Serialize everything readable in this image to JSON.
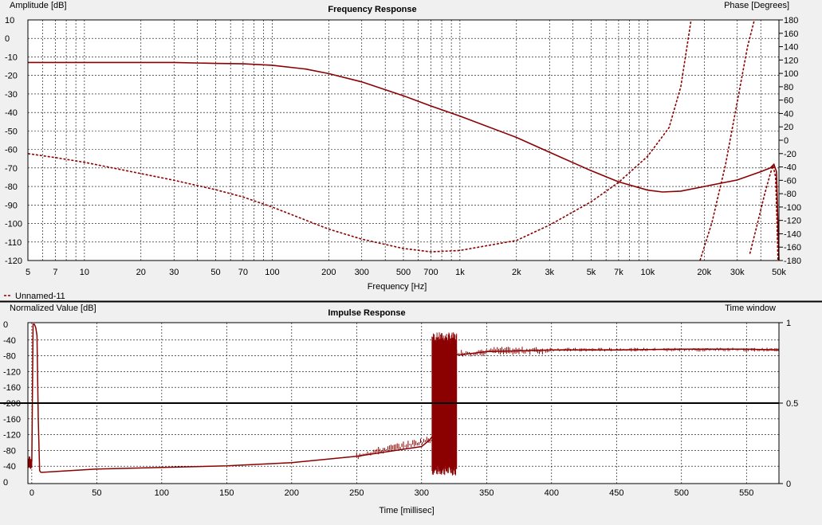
{
  "colors": {
    "trace": "#8b0000",
    "grid": "#000000",
    "background": "#f0f0f0",
    "plot": "#ffffff"
  },
  "legend": {
    "entry": "Unnamed-11"
  },
  "chart_data": [
    {
      "type": "line",
      "title": "Frequency Response",
      "xlabel": "Frequency [Hz]",
      "ylabel_left": "Amplitude [dB]",
      "ylabel_right": "Phase [Degrees]",
      "x_scale": "log",
      "xlim": [
        5,
        50000
      ],
      "ylim_left": [
        -120,
        10
      ],
      "ylim_right": [
        -180,
        180
      ],
      "x_ticks": [
        {
          "v": 5,
          "l": "5"
        },
        {
          "v": 7,
          "l": "7"
        },
        {
          "v": 10,
          "l": "10"
        },
        {
          "v": 20,
          "l": "20"
        },
        {
          "v": 30,
          "l": "30"
        },
        {
          "v": 50,
          "l": "50"
        },
        {
          "v": 70,
          "l": "70"
        },
        {
          "v": 100,
          "l": "100"
        },
        {
          "v": 200,
          "l": "200"
        },
        {
          "v": 300,
          "l": "300"
        },
        {
          "v": 500,
          "l": "500"
        },
        {
          "v": 700,
          "l": "700"
        },
        {
          "v": 1000,
          "l": "1k"
        },
        {
          "v": 2000,
          "l": "2k"
        },
        {
          "v": 3000,
          "l": "3k"
        },
        {
          "v": 5000,
          "l": "5k"
        },
        {
          "v": 7000,
          "l": "7k"
        },
        {
          "v": 10000,
          "l": "10k"
        },
        {
          "v": 20000,
          "l": "20k"
        },
        {
          "v": 30000,
          "l": "30k"
        },
        {
          "v": 50000,
          "l": "50k"
        }
      ],
      "y_ticks_left": [
        "10",
        "0",
        "-10",
        "-20",
        "-30",
        "-40",
        "-50",
        "-60",
        "-70",
        "-80",
        "-90",
        "-100",
        "-110",
        "-120"
      ],
      "y_ticks_right": [
        "180",
        "160",
        "140",
        "120",
        "100",
        "80",
        "60",
        "40",
        "20",
        "0",
        "-20",
        "-40",
        "-60",
        "-80",
        "-100",
        "-120",
        "-140",
        "-160",
        "-180"
      ],
      "grid": true,
      "series": [
        {
          "name": "Unnamed-11",
          "style": "solid",
          "axis": "left",
          "x": [
            5,
            10,
            20,
            30,
            50,
            70,
            100,
            150,
            200,
            300,
            500,
            700,
            1000,
            2000,
            3000,
            5000,
            7000,
            10000,
            12000,
            15000,
            20000,
            30000,
            40000,
            45000,
            47000,
            48500,
            50000
          ],
          "y": [
            -13,
            -13,
            -13,
            -13,
            -13.5,
            -13.7,
            -14.5,
            -16.5,
            -19,
            -23.5,
            -31,
            -36.5,
            -42,
            -53.5,
            -61.5,
            -71.5,
            -77.5,
            -82,
            -83,
            -82.5,
            -80,
            -76.5,
            -72,
            -70,
            -68,
            -72,
            -120
          ]
        },
        {
          "name": "Unnamed-11",
          "style": "dashed",
          "axis": "right",
          "segments": [
            {
              "x": [
                5,
                7,
                10,
                20,
                30,
                50,
                70,
                100,
                200,
                300,
                500,
                700,
                1000,
                2000,
                3000,
                5000,
                7000,
                10000,
                13000,
                15000,
                17000
              ],
              "y": [
                -20,
                -26,
                -33,
                -50,
                -60,
                -74,
                -85,
                -100,
                -133,
                -148,
                -162,
                -167,
                -165,
                -150,
                -127,
                -92,
                -63,
                -24,
                19,
                80,
                179
              ]
            },
            {
              "x": [
                19000,
                22000,
                26000,
                30000,
                34000,
                37000
              ],
              "y": [
                -180,
                -123,
                -36,
                58,
                140,
                180
              ]
            },
            {
              "x": [
                35000,
                38000,
                42000,
                45000,
                46500,
                48000,
                48800,
                49400
              ],
              "y": [
                -170,
                -130,
                -80,
                -50,
                -38,
                -55,
                -120,
                -180
              ]
            }
          ]
        }
      ]
    },
    {
      "type": "line",
      "title": "Impulse Response",
      "xlabel": "Time [millisec]",
      "ylabel_left": "Normalized Value [dB]",
      "ylabel_right": "Time window",
      "xlim": [
        -3,
        575
      ],
      "x_ticks": [
        0,
        50,
        100,
        150,
        200,
        250,
        300,
        350,
        400,
        450,
        500,
        550
      ],
      "ylim_left": [
        0,
        1
      ],
      "ylim_right": [
        0,
        1
      ],
      "y_ticks_left": [
        "0",
        "-40",
        "-80",
        "-120",
        "-160",
        "-200",
        "-160",
        "-120",
        "-80",
        "-40",
        "0"
      ],
      "y_ticks_right": [
        "1",
        "0.5",
        "0"
      ],
      "reference_line": 0.5,
      "grid": true,
      "series": [
        {
          "name": "Unnamed-11",
          "x": [
            -3,
            0,
            1,
            2,
            3,
            4,
            5,
            6,
            7,
            8,
            50,
            100,
            150,
            200,
            250,
            300,
            306,
            309,
            312,
            315,
            318,
            321,
            324,
            327,
            330,
            350,
            400,
            450,
            500,
            550,
            575
          ],
          "y": [
            0.13,
            0.14,
            0.99,
            0.99,
            0.97,
            0.92,
            0.4,
            0.08,
            0.07,
            0.07,
            0.09,
            0.1,
            0.11,
            0.13,
            0.17,
            0.23,
            0.27,
            0.3,
            0.87,
            0.12,
            0.9,
            0.15,
            0.86,
            0.8,
            0.8,
            0.82,
            0.83,
            0.83,
            0.835,
            0.835,
            0.83
          ]
        }
      ]
    }
  ]
}
